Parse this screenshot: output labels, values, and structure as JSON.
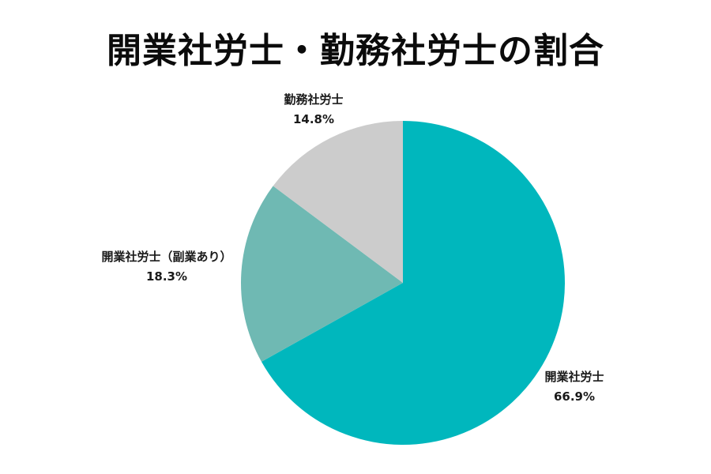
{
  "chart_data": {
    "type": "pie",
    "title": "開業社労士・勤務社労士の割合",
    "slices": [
      {
        "label": "開業社労士",
        "value": 66.9,
        "display": "66.9%",
        "color": "#00b7bd"
      },
      {
        "label": "開業社労士（副業あり）",
        "value": 18.3,
        "display": "18.3%",
        "color": "#6fb9b3"
      },
      {
        "label": "勤務社労士",
        "value": 14.8,
        "display": "14.8%",
        "color": "#cccccc"
      }
    ],
    "start_angle": "12 o'clock",
    "direction": "clockwise",
    "legend": "none"
  }
}
